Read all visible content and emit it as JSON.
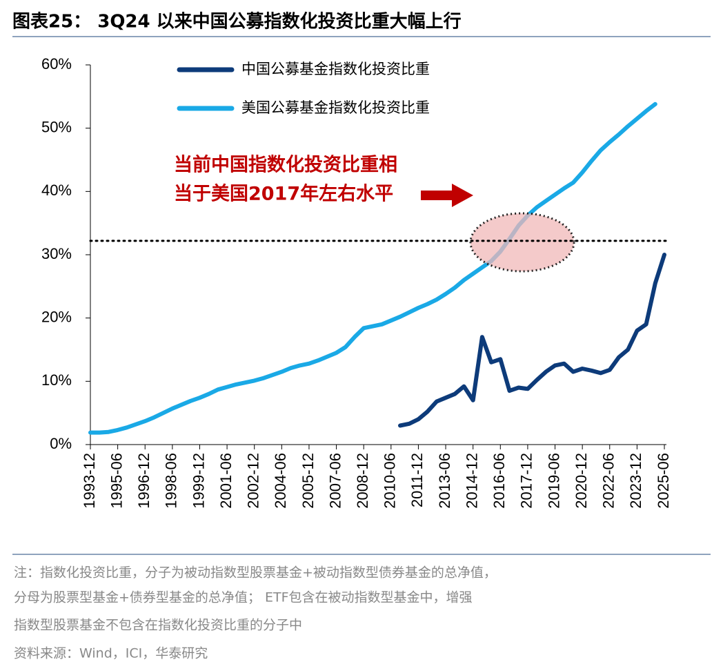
{
  "chart_data": {
    "type": "line",
    "title": "图表25：  3Q24 以来中国公募指数化投资比重大幅上行",
    "categories": [
      "1993-12",
      null,
      null,
      "1995-06",
      null,
      null,
      "1996-12",
      null,
      null,
      "1998-06",
      null,
      null,
      "1999-12",
      null,
      null,
      "2001-06",
      null,
      null,
      "2002-12",
      null,
      null,
      "2004-06",
      null,
      null,
      "2005-12",
      null,
      null,
      "2007-06",
      null,
      null,
      "2008-12",
      null,
      null,
      "2010-06",
      null,
      null,
      "2011-12",
      null,
      null,
      "2013-06",
      null,
      null,
      "2014-12",
      null,
      null,
      "2016-06",
      null,
      null,
      "2017-12",
      null,
      null,
      "2019-06",
      null,
      null,
      "2020-12",
      null,
      null,
      "2022-06",
      null,
      null,
      "2023-12",
      null,
      null,
      "2025-06"
    ],
    "series": [
      {
        "name": "中国公募基金指数化投资比重",
        "color": "#0d3b7a",
        "values": [
          null,
          null,
          null,
          null,
          null,
          null,
          null,
          null,
          null,
          null,
          null,
          null,
          null,
          null,
          null,
          null,
          null,
          null,
          null,
          null,
          null,
          null,
          null,
          null,
          null,
          null,
          null,
          null,
          null,
          null,
          null,
          null,
          null,
          null,
          3.0,
          3.3,
          4.0,
          5.2,
          6.8,
          7.4,
          8.0,
          9.2,
          7.0,
          17.0,
          13.0,
          13.5,
          8.5,
          9.0,
          8.8,
          10.2,
          11.5,
          12.5,
          12.8,
          11.5,
          12.0,
          11.7,
          11.3,
          11.8,
          13.8,
          15.0,
          18.0,
          19.0,
          25.5,
          30.0
        ]
      },
      {
        "name": "美国公募基金指数化投资比重",
        "color": "#1aa9e6",
        "values": [
          1.9,
          1.9,
          2.0,
          2.3,
          2.7,
          3.2,
          3.7,
          4.3,
          5.0,
          5.7,
          6.3,
          6.9,
          7.4,
          8.0,
          8.7,
          9.1,
          9.5,
          9.8,
          10.1,
          10.5,
          11.0,
          11.5,
          12.1,
          12.5,
          12.8,
          13.3,
          13.9,
          14.5,
          15.4,
          17.0,
          18.4,
          18.7,
          19.0,
          19.6,
          20.2,
          20.9,
          21.6,
          22.2,
          22.9,
          23.8,
          24.8,
          26.0,
          27.0,
          28.0,
          29.0,
          30.5,
          32.5,
          34.6,
          36.2,
          37.5,
          38.5,
          39.5,
          40.5,
          41.4,
          43.0,
          44.8,
          46.5,
          47.8,
          49.0,
          50.3,
          51.5,
          52.7,
          53.8,
          null
        ]
      }
    ],
    "ylim": [
      0,
      60
    ],
    "yticks": [
      {
        "value": 0,
        "label": "0%"
      },
      {
        "value": 10,
        "label": "10%"
      },
      {
        "value": 20,
        "label": "20%"
      },
      {
        "value": 30,
        "label": "30%"
      },
      {
        "value": 40,
        "label": "40%"
      },
      {
        "value": 50,
        "label": "50%"
      },
      {
        "value": 60,
        "label": "60%"
      }
    ],
    "reference_line": 32.2,
    "annotation": [
      "当前中国指数化投资比重相",
      "当于美国2017年左右水平"
    ],
    "notes": [
      "注：指数化投资比重，分子为被动指数型股票基金+被动指数型债券基金的总净值，",
      "分母为股票型基金+债券型基金的总净值； ETF包含在被动指数型基金中，增强",
      "指数型股票基金不包含在指数化投资比重的分子中"
    ],
    "source": "资料来源：Wind，ICI，华泰研究"
  }
}
